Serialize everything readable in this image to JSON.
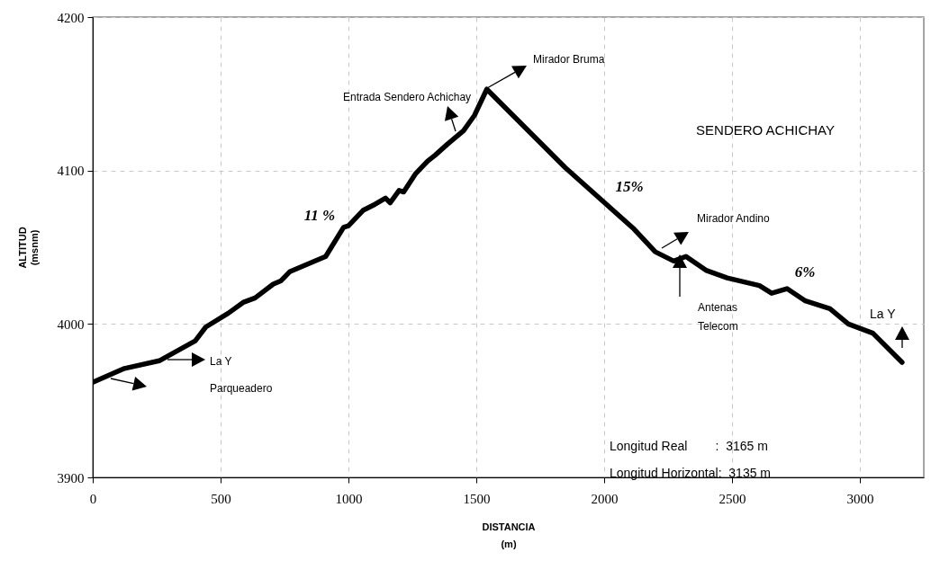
{
  "chart_data": {
    "type": "line",
    "xlabel": "DISTANCIA\n(m)",
    "ylabel": "ALTITUD\n(msnm)",
    "x": [
      0,
      124,
      260,
      401,
      442,
      530,
      588,
      635,
      706,
      735,
      770,
      911,
      981,
      1000,
      1057,
      1104,
      1145,
      1163,
      1198,
      1216,
      1263,
      1309,
      1339,
      1386,
      1450,
      1493,
      1541,
      1847,
      2116,
      2200,
      2272,
      2320,
      2398,
      2481,
      2607,
      2655,
      2715,
      2787,
      2883,
      2955,
      3051,
      3165
    ],
    "series": [
      {
        "color": "#000000",
        "values": [
          3962,
          3971,
          3976,
          3989,
          3998,
          4007,
          4014,
          4017,
          4026,
          4028,
          4034,
          4044,
          4063,
          4064,
          4074,
          4078,
          4082,
          4079,
          4087,
          4086,
          4098,
          4106,
          4110,
          4117,
          4126,
          4136,
          4153,
          4102,
          4062,
          4047,
          4041,
          4044,
          4035,
          4030,
          4025,
          4020,
          4023,
          4015,
          4010,
          4000,
          3994,
          3975
        ]
      }
    ],
    "xlim": [
      0,
      3250
    ],
    "ylim": [
      3900,
      4200
    ],
    "xticks": [
      0,
      500,
      1000,
      1500,
      2000,
      2500,
      3000
    ],
    "yticks": [
      3900,
      4000,
      4100,
      4200
    ],
    "grid": true,
    "annotations": [
      "La Y",
      "Parqueadero",
      "Entrada Sendero Achichay",
      "Mirador Bruma",
      "Mirador Andino",
      "Antenas\nTelecom",
      "La Y",
      "11 %",
      "15%",
      "6%",
      "SENDERO ACHICHAY",
      "Longitud Real        :  3165 m",
      "Longitud Horizontal:  3135 m"
    ]
  }
}
